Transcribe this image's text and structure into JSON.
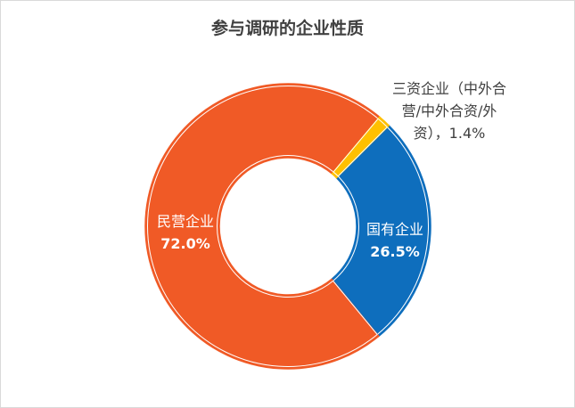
{
  "chart_data": {
    "type": "pie",
    "variant": "donut",
    "title": "参与调研的企业性质",
    "start_angle_deg": 45,
    "slices": [
      {
        "label": "国有企业",
        "value": 26.5,
        "value_label": "26.5%",
        "color": "#0e6ebd",
        "label_color": "#ffffff",
        "label_position": "inside"
      },
      {
        "label": "民营企业",
        "value": 72.0,
        "value_label": "72.0%",
        "color": "#f05a26",
        "label_color": "#ffffff",
        "label_position": "inside"
      },
      {
        "label": "三资企业（中外合营/中外合资/外资）",
        "label_lines": [
          "三资企业（中外合",
          "营/中外合资/外",
          "资），1.4%"
        ],
        "value": 1.4,
        "value_label": "1.4%",
        "color": "#ffc000",
        "label_color": "#404040",
        "label_position": "outside"
      }
    ],
    "legend": "none"
  }
}
